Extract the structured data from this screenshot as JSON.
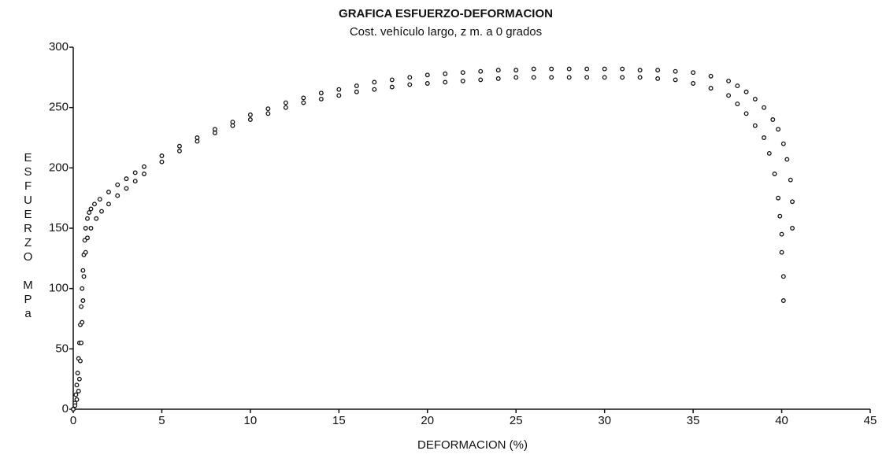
{
  "chart_data": {
    "type": "scatter",
    "title": "GRAFICA ESFUERZO-DEFORMACION",
    "subtitle": "Cost. vehículo largo, z m. a 0 grados",
    "x_label": "DEFORMACION (%)",
    "y_label": "ESFUERZO MPa",
    "xlim": [
      0,
      45
    ],
    "xticks": [
      0,
      5,
      10,
      15,
      20,
      25,
      30,
      35,
      40,
      45
    ],
    "ylim": [
      0,
      300
    ],
    "yticks": [
      0,
      50,
      100,
      150,
      200,
      250,
      300
    ],
    "grid": false,
    "series": [
      {
        "color": "#111111",
        "x": [
          0,
          0.1,
          0.15,
          0.2,
          0.25,
          0.3,
          0.35,
          0.4,
          0.45,
          0.5,
          0.55,
          0.6,
          0.65,
          0.7,
          0.8,
          0.9,
          1.0,
          1.2,
          1.5,
          2,
          2.5,
          3,
          3.5,
          4,
          5,
          6,
          7,
          8,
          9,
          10,
          11,
          12,
          13,
          14,
          15,
          16,
          17,
          18,
          19,
          20,
          21,
          22,
          23,
          24,
          25,
          26,
          27,
          28,
          29,
          30,
          31,
          32,
          33,
          34,
          35,
          36,
          37,
          37.5,
          38,
          38.5,
          39,
          39.5,
          39.8,
          40.1,
          40.3,
          40.5,
          40.6,
          40.6
        ],
        "values": [
          0,
          5,
          12,
          20,
          30,
          42,
          55,
          70,
          85,
          100,
          115,
          128,
          140,
          150,
          158,
          163,
          166,
          170,
          174,
          180,
          186,
          191,
          196,
          201,
          210,
          218,
          225,
          232,
          238,
          244,
          249,
          254,
          258,
          262,
          265,
          268,
          271,
          273,
          275,
          277,
          278,
          279,
          280,
          281,
          281,
          282,
          282,
          282,
          282,
          282,
          282,
          281,
          281,
          280,
          279,
          276,
          272,
          268,
          263,
          257,
          250,
          240,
          232,
          220,
          207,
          190,
          172,
          150
        ]
      },
      {
        "color": "#111111",
        "x": [
          0,
          0.1,
          0.2,
          0.3,
          0.35,
          0.4,
          0.45,
          0.5,
          0.55,
          0.6,
          0.7,
          0.8,
          1.0,
          1.3,
          1.6,
          2,
          2.5,
          3,
          3.5,
          4,
          5,
          6,
          7,
          8,
          9,
          10,
          11,
          12,
          13,
          14,
          15,
          16,
          17,
          18,
          19,
          20,
          21,
          22,
          23,
          24,
          25,
          26,
          27,
          28,
          29,
          30,
          31,
          32,
          33,
          34,
          35,
          36,
          37,
          37.5,
          38,
          38.5,
          39,
          39.3,
          39.6,
          39.8,
          39.9,
          40,
          40,
          40.1,
          40.1
        ],
        "values": [
          0,
          3,
          8,
          15,
          25,
          40,
          55,
          72,
          90,
          110,
          130,
          142,
          150,
          158,
          164,
          170,
          177,
          183,
          189,
          195,
          205,
          214,
          222,
          229,
          235,
          240,
          245,
          250,
          254,
          257,
          260,
          263,
          265,
          267,
          269,
          270,
          271,
          272,
          273,
          274,
          275,
          275,
          275,
          275,
          275,
          275,
          275,
          275,
          274,
          273,
          270,
          266,
          260,
          253,
          245,
          235,
          225,
          212,
          195,
          175,
          160,
          145,
          130,
          110,
          90
        ]
      }
    ]
  }
}
